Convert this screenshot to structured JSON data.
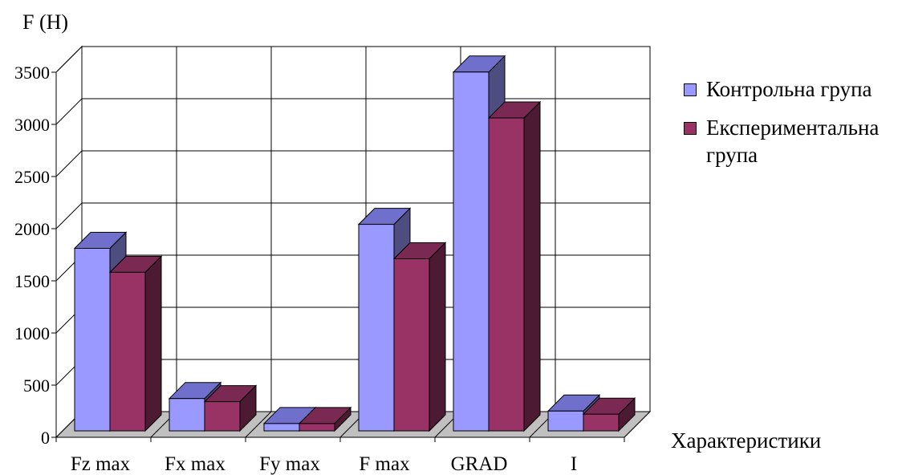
{
  "chart_data": {
    "type": "bar",
    "title": "",
    "ylabel": "F (Н)",
    "xlabel": "Характеристики",
    "categories": [
      "Fz max",
      "Fx max",
      "Fy max",
      "F max",
      "GRAD",
      "I"
    ],
    "series": [
      {
        "name": "Контрольна група",
        "values": [
          1750,
          310,
          70,
          1980,
          3440,
          190
        ],
        "color": "#9999FF",
        "top_color": "#7070CC",
        "side_color": "#4D4D80"
      },
      {
        "name": "Експериментальна група",
        "values": [
          1520,
          280,
          70,
          1650,
          3000,
          160
        ],
        "color": "#993366",
        "top_color": "#7A2952",
        "side_color": "#4D1A33"
      }
    ],
    "ylim": [
      0,
      3500
    ],
    "yticks": [
      "0",
      "500",
      "1000",
      "1500",
      "2000",
      "2500",
      "3000",
      "3500"
    ],
    "grid": true,
    "legend_position": "right",
    "floor_color": "#C0C0C0"
  }
}
